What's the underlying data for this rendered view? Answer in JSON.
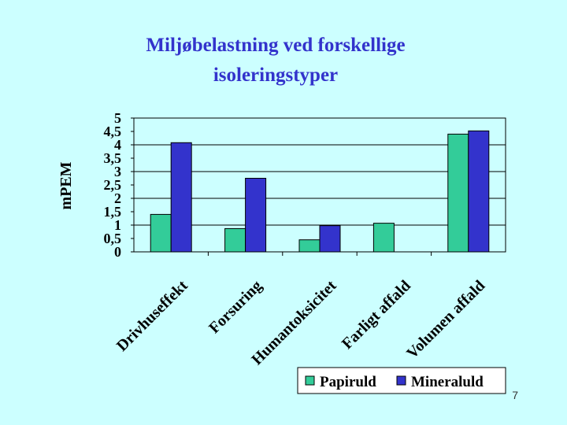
{
  "slide": {
    "title_line1": "Miljøbelastning ved forskellige",
    "title_line2": "isoleringstyper",
    "page_number": "7"
  },
  "colors": {
    "background": "#CCFFFF",
    "title": "#3333CC",
    "papiruld": "#33CC99",
    "mineraluld": "#3333CC"
  },
  "chart_data": {
    "type": "bar",
    "title": "Miljøbelastning ved forskellige isoleringstyper",
    "xlabel": "",
    "ylabel": "mPEM",
    "ylim": [
      0,
      5
    ],
    "y_ticks": [
      "0",
      "0,5",
      "1",
      "1,5",
      "2",
      "2,5",
      "3",
      "3,5",
      "4",
      "4,5",
      "5"
    ],
    "categories": [
      "Drivhuseffekt",
      "Forsuring",
      "Humantoksicitet",
      "Farligt affald",
      "Volumen affald"
    ],
    "series": [
      {
        "name": "Papiruld",
        "values": [
          1.4,
          0.87,
          0.45,
          1.07,
          4.4
        ]
      },
      {
        "name": "Mineraluld",
        "values": [
          4.08,
          2.75,
          0.98,
          null,
          4.52
        ]
      }
    ],
    "grid": true,
    "legend_position": "bottom-right"
  }
}
